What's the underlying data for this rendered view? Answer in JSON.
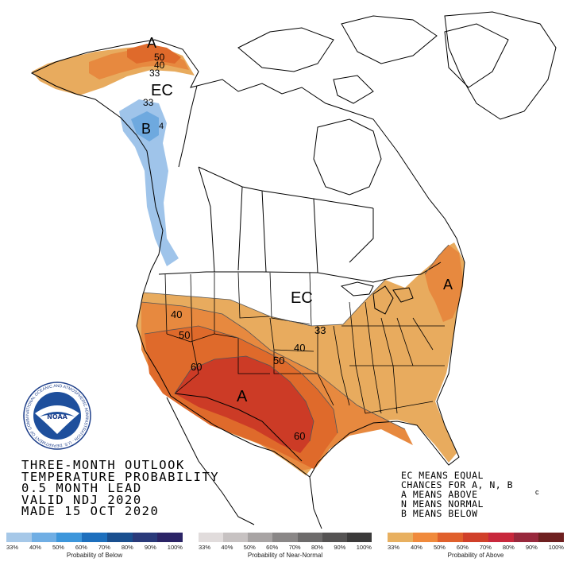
{
  "title_lines": [
    "THREE-MONTH OUTLOOK",
    "TEMPERATURE PROBABILITY",
    "0.5 MONTH LEAD",
    "VALID NDJ 2020",
    "MADE 15 OCT 2020"
  ],
  "legend_notes": [
    "EC MEANS EQUAL",
    "CHANCES FOR A, N, B",
    "A MEANS ABOVE",
    "N MEANS NORMAL",
    "B MEANS BELOW"
  ],
  "logo_text": "NOAA",
  "logo_ring_text": "NATIONAL OCEANIC AND ATMOSPHERIC ADMINISTRATION · U.S. DEPARTMENT OF COMMERCE",
  "map_labels": {
    "ec_alaska": "EC",
    "ec_conus": "EC",
    "above_alaska": "A",
    "above_southwest": "A",
    "above_northeast": "A",
    "below_alaska": "B",
    "contour_40_west": "40",
    "contour_50_west": "50",
    "contour_60_west": "60",
    "contour_33_central": "33",
    "contour_40_central": "40",
    "contour_50_central": "50",
    "contour_60_texas": "60",
    "contour_50_alaska": "50",
    "contour_40_alaska": "40",
    "contour_33_alaska": "33",
    "contour_33_alaska_b": "33",
    "contour_40_alaska_b": "4"
  },
  "scales": [
    {
      "id": "below",
      "title": "Probability of Below",
      "ticks": [
        "33%",
        "40%",
        "50%",
        "60%",
        "70%",
        "80%",
        "90%",
        "100%"
      ],
      "colors": [
        "#a6c8e8",
        "#70aee4",
        "#3d96db",
        "#1d6fbd",
        "#1a4f8f",
        "#2a3a7a",
        "#2b2466"
      ]
    },
    {
      "id": "normal",
      "title": "Probability of Near-Normal",
      "ticks": [
        "33%",
        "40%",
        "50%",
        "60%",
        "70%",
        "80%",
        "90%",
        "100%"
      ],
      "colors": [
        "#e1dcdc",
        "#c7c2c2",
        "#a8a4a4",
        "#8a8787",
        "#6d6b6b",
        "#555353",
        "#3b3a3a"
      ]
    },
    {
      "id": "above",
      "title": "Probability of Above",
      "ticks": [
        "33%",
        "40%",
        "50%",
        "60%",
        "70%",
        "80%",
        "90%",
        "100%"
      ],
      "colors": [
        "#e8b060",
        "#f08a3c",
        "#e0602c",
        "#d0402a",
        "#c8283c",
        "#98283c",
        "#6e2020"
      ]
    }
  ],
  "colors": {
    "above_33": "#e8ab5e",
    "above_40": "#e7893f",
    "above_50": "#df6a2b",
    "above_60": "#cc3b26",
    "below_33": "#9fc4ea",
    "below_40": "#6ea9df"
  }
}
